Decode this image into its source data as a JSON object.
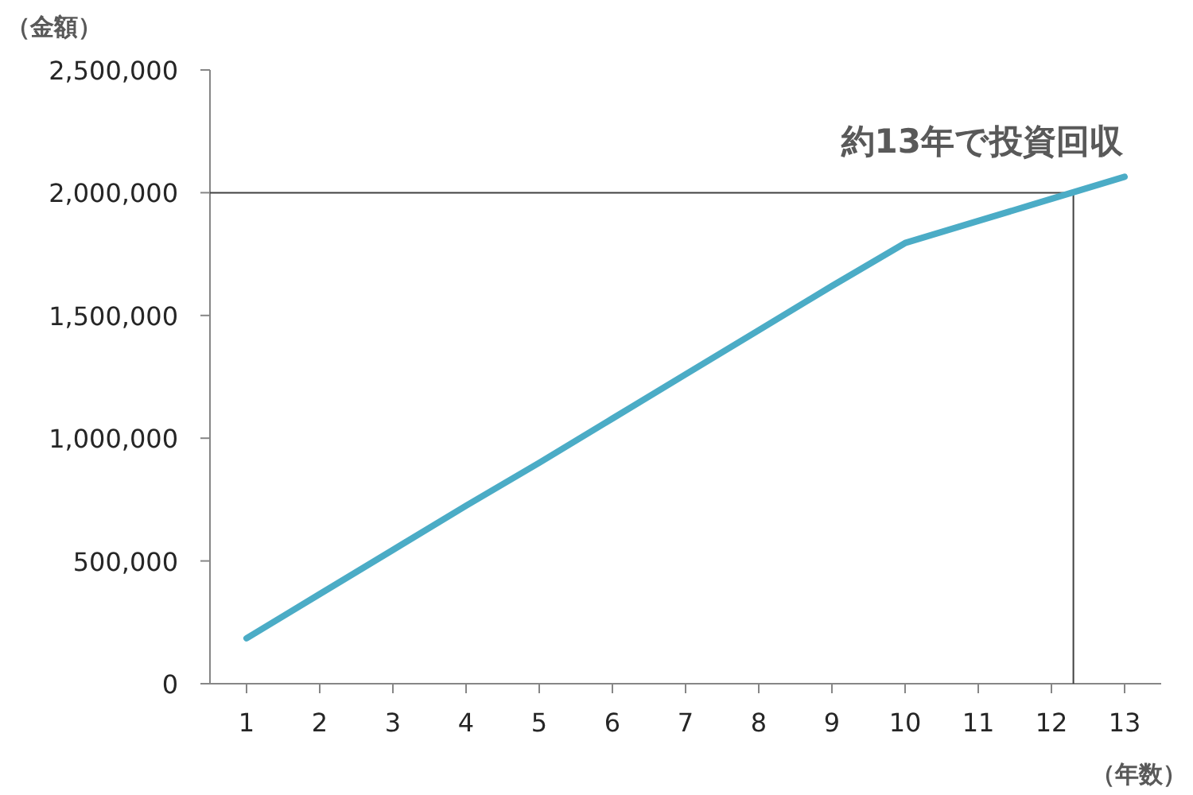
{
  "chart_data": {
    "type": "line",
    "ylabel": "（金額）",
    "xlabel": "（年数）",
    "x": [
      1,
      2,
      3,
      4,
      5,
      6,
      7,
      8,
      9,
      10,
      11,
      12,
      13
    ],
    "series": [
      {
        "color": "#4bacc6",
        "values": [
          185000,
          365000,
          545000,
          725000,
          900000,
          1080000,
          1260000,
          1440000,
          1620000,
          1795000,
          1885000,
          1975000,
          2065000
        ]
      }
    ],
    "xlim": [
      0.5,
      13.5
    ],
    "xticks": [
      1,
      2,
      3,
      4,
      5,
      6,
      7,
      8,
      9,
      10,
      11,
      12,
      13
    ],
    "ylim": [
      0,
      2500000
    ],
    "yticks": [
      {
        "value": 0,
        "label": "0"
      },
      {
        "value": 500000,
        "label": "500,000"
      },
      {
        "value": 1000000,
        "label": "1,000,000"
      },
      {
        "value": 1500000,
        "label": "1,500,000"
      },
      {
        "value": 2000000,
        "label": "2,000,000"
      },
      {
        "value": 2500000,
        "label": "2,500,000"
      }
    ],
    "ref_lines": [
      {
        "axis": "y",
        "value": 2000000,
        "color": "#404040"
      },
      {
        "axis": "x",
        "value": 12.3,
        "color": "#404040"
      }
    ],
    "annotations": [
      "約13年で投資回収"
    ],
    "grid": false,
    "marker": "none",
    "line_style": "solid"
  }
}
